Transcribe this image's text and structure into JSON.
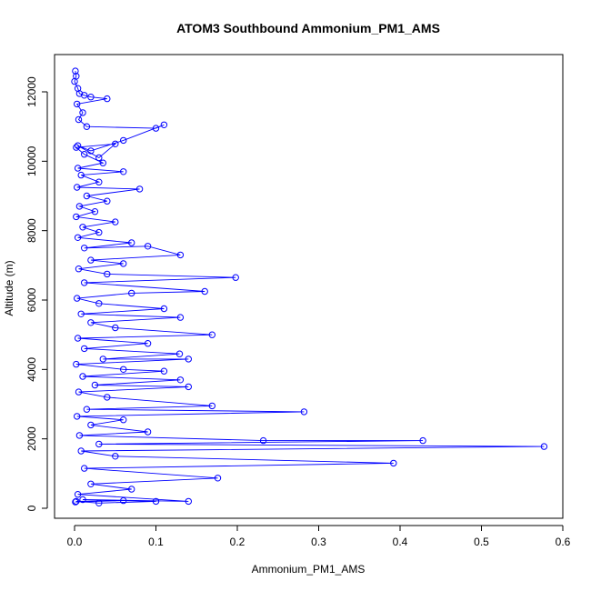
{
  "chart_data": {
    "type": "line",
    "title": "ATOM3 Southbound Ammonium_PM1_AMS",
    "xlabel": "Ammonium_PM1_AMS",
    "ylabel": "Altitude (m)",
    "xlim": [
      0,
      0.6
    ],
    "ylim": [
      0,
      12000
    ],
    "x_ticks": [
      0,
      0.1,
      0.2,
      0.3,
      0.4,
      0.5,
      0.6
    ],
    "x_tick_labels": [
      "0.0",
      "0.1",
      "0.2",
      "0.3",
      "0.4",
      "0.5",
      "0.6"
    ],
    "y_ticks": [
      0,
      2000,
      4000,
      6000,
      8000,
      10000,
      12000
    ],
    "y_tick_labels": [
      "0",
      "2000",
      "4000",
      "6000",
      "8000",
      "10000",
      "12000"
    ],
    "grid": false,
    "color": "#0000ff",
    "marker": "open-circle",
    "series": [
      {
        "points": [
          [
            0.001,
            12600
          ],
          [
            0.002,
            12450
          ],
          [
            0.0,
            12300
          ],
          [
            0.004,
            12100
          ],
          [
            0.006,
            11950
          ],
          [
            0.012,
            11900
          ],
          [
            0.02,
            11850
          ],
          [
            0.04,
            11800
          ],
          [
            0.003,
            11650
          ],
          [
            0.01,
            11400
          ],
          [
            0.005,
            11200
          ],
          [
            0.015,
            11000
          ],
          [
            0.1,
            10950
          ],
          [
            0.11,
            11050
          ],
          [
            0.06,
            10600
          ],
          [
            0.02,
            10300
          ],
          [
            0.004,
            10450
          ],
          [
            0.03,
            10100
          ],
          [
            0.05,
            10500
          ],
          [
            0.002,
            10400
          ],
          [
            0.012,
            10200
          ],
          [
            0.035,
            9950
          ],
          [
            0.004,
            9800
          ],
          [
            0.06,
            9700
          ],
          [
            0.008,
            9600
          ],
          [
            0.03,
            9400
          ],
          [
            0.003,
            9250
          ],
          [
            0.08,
            9200
          ],
          [
            0.015,
            9000
          ],
          [
            0.04,
            8850
          ],
          [
            0.006,
            8700
          ],
          [
            0.025,
            8550
          ],
          [
            0.002,
            8400
          ],
          [
            0.05,
            8250
          ],
          [
            0.01,
            8100
          ],
          [
            0.03,
            7950
          ],
          [
            0.004,
            7800
          ],
          [
            0.07,
            7650
          ],
          [
            0.012,
            7500
          ],
          [
            0.09,
            7550
          ],
          [
            0.13,
            7300
          ],
          [
            0.02,
            7150
          ],
          [
            0.06,
            7050
          ],
          [
            0.005,
            6900
          ],
          [
            0.04,
            6750
          ],
          [
            0.198,
            6650
          ],
          [
            0.012,
            6500
          ],
          [
            0.16,
            6250
          ],
          [
            0.07,
            6200
          ],
          [
            0.003,
            6050
          ],
          [
            0.03,
            5900
          ],
          [
            0.11,
            5750
          ],
          [
            0.008,
            5600
          ],
          [
            0.13,
            5500
          ],
          [
            0.02,
            5350
          ],
          [
            0.05,
            5200
          ],
          [
            0.169,
            5000
          ],
          [
            0.004,
            4900
          ],
          [
            0.09,
            4750
          ],
          [
            0.012,
            4600
          ],
          [
            0.129,
            4450
          ],
          [
            0.035,
            4300
          ],
          [
            0.14,
            4300
          ],
          [
            0.002,
            4150
          ],
          [
            0.06,
            4000
          ],
          [
            0.11,
            3950
          ],
          [
            0.01,
            3800
          ],
          [
            0.13,
            3700
          ],
          [
            0.025,
            3550
          ],
          [
            0.14,
            3500
          ],
          [
            0.005,
            3350
          ],
          [
            0.04,
            3200
          ],
          [
            0.169,
            2950
          ],
          [
            0.015,
            2850
          ],
          [
            0.282,
            2780
          ],
          [
            0.003,
            2650
          ],
          [
            0.06,
            2550
          ],
          [
            0.02,
            2400
          ],
          [
            0.09,
            2200
          ],
          [
            0.006,
            2100
          ],
          [
            0.232,
            1950
          ],
          [
            0.428,
            1950
          ],
          [
            0.03,
            1850
          ],
          [
            0.577,
            1780
          ],
          [
            0.008,
            1650
          ],
          [
            0.05,
            1500
          ],
          [
            0.392,
            1300
          ],
          [
            0.012,
            1150
          ],
          [
            0.176,
            870
          ],
          [
            0.02,
            700
          ],
          [
            0.07,
            550
          ],
          [
            0.004,
            400
          ],
          [
            0.14,
            200
          ],
          [
            0.01,
            250
          ],
          [
            0.1,
            200
          ],
          [
            0.03,
            150
          ],
          [
            0.002,
            200
          ],
          [
            0.06,
            220
          ],
          [
            0.001,
            180
          ]
        ]
      }
    ]
  }
}
